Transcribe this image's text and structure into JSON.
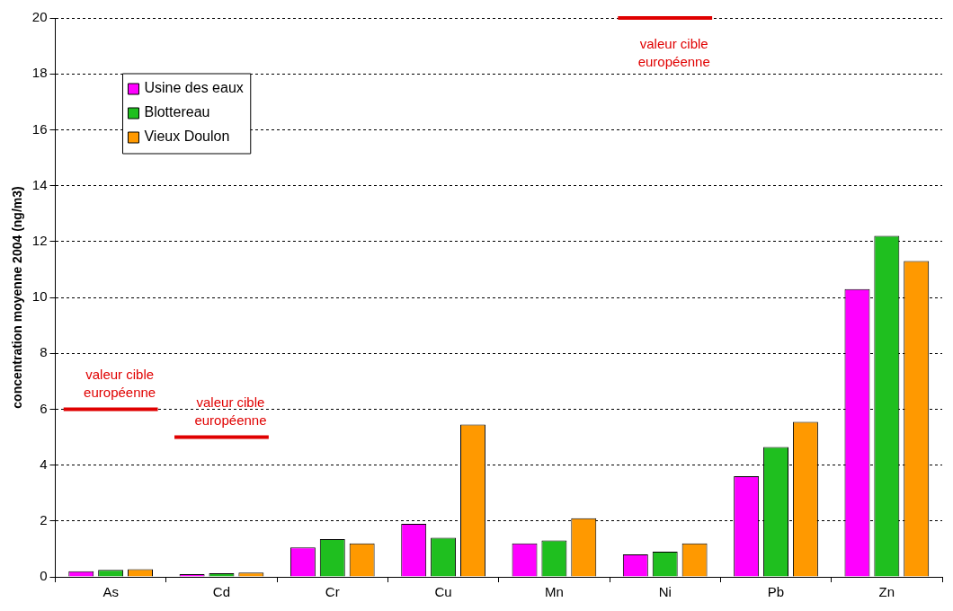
{
  "chart_data": {
    "type": "bar",
    "ylabel": "concentration moyenne 2004 (ng/m3)",
    "categories": [
      "As",
      "Cd",
      "Cr",
      "Cu",
      "Mn",
      "Ni",
      "Pb",
      "Zn"
    ],
    "series": [
      {
        "name": "Usine des eaux",
        "color": "#ff00ff",
        "values": [
          0.2,
          0.1,
          1.05,
          1.9,
          1.2,
          0.8,
          3.6,
          10.3
        ]
      },
      {
        "name": "Blottereau",
        "color": "#1fbf1f",
        "values": [
          0.25,
          0.13,
          1.35,
          1.4,
          1.3,
          0.9,
          4.65,
          12.2
        ]
      },
      {
        "name": "Vieux Doulon",
        "color": "#ff9900",
        "values": [
          0.27,
          0.15,
          1.2,
          5.45,
          2.1,
          1.2,
          5.55,
          11.3
        ]
      }
    ],
    "ref_lines": [
      {
        "axis": "y",
        "value": 6,
        "color": "#e00000"
      },
      {
        "axis": "y",
        "value": 5,
        "color": "#e00000"
      },
      {
        "axis": "y",
        "value": 20,
        "color": "#e00000"
      }
    ],
    "annotations": [
      {
        "text": "valeur cible européenne",
        "x": "As",
        "y": 6
      },
      {
        "text": "valeur cible européenne",
        "x": "Cd",
        "y": 5
      },
      {
        "text": "valeur cible européenne",
        "x": "Ni",
        "y": 20
      }
    ],
    "ylim": [
      0,
      20
    ],
    "yticks": [
      0,
      2,
      4,
      6,
      8,
      10,
      12,
      14,
      16,
      18,
      20
    ],
    "grid": "y",
    "legend": "top left"
  }
}
